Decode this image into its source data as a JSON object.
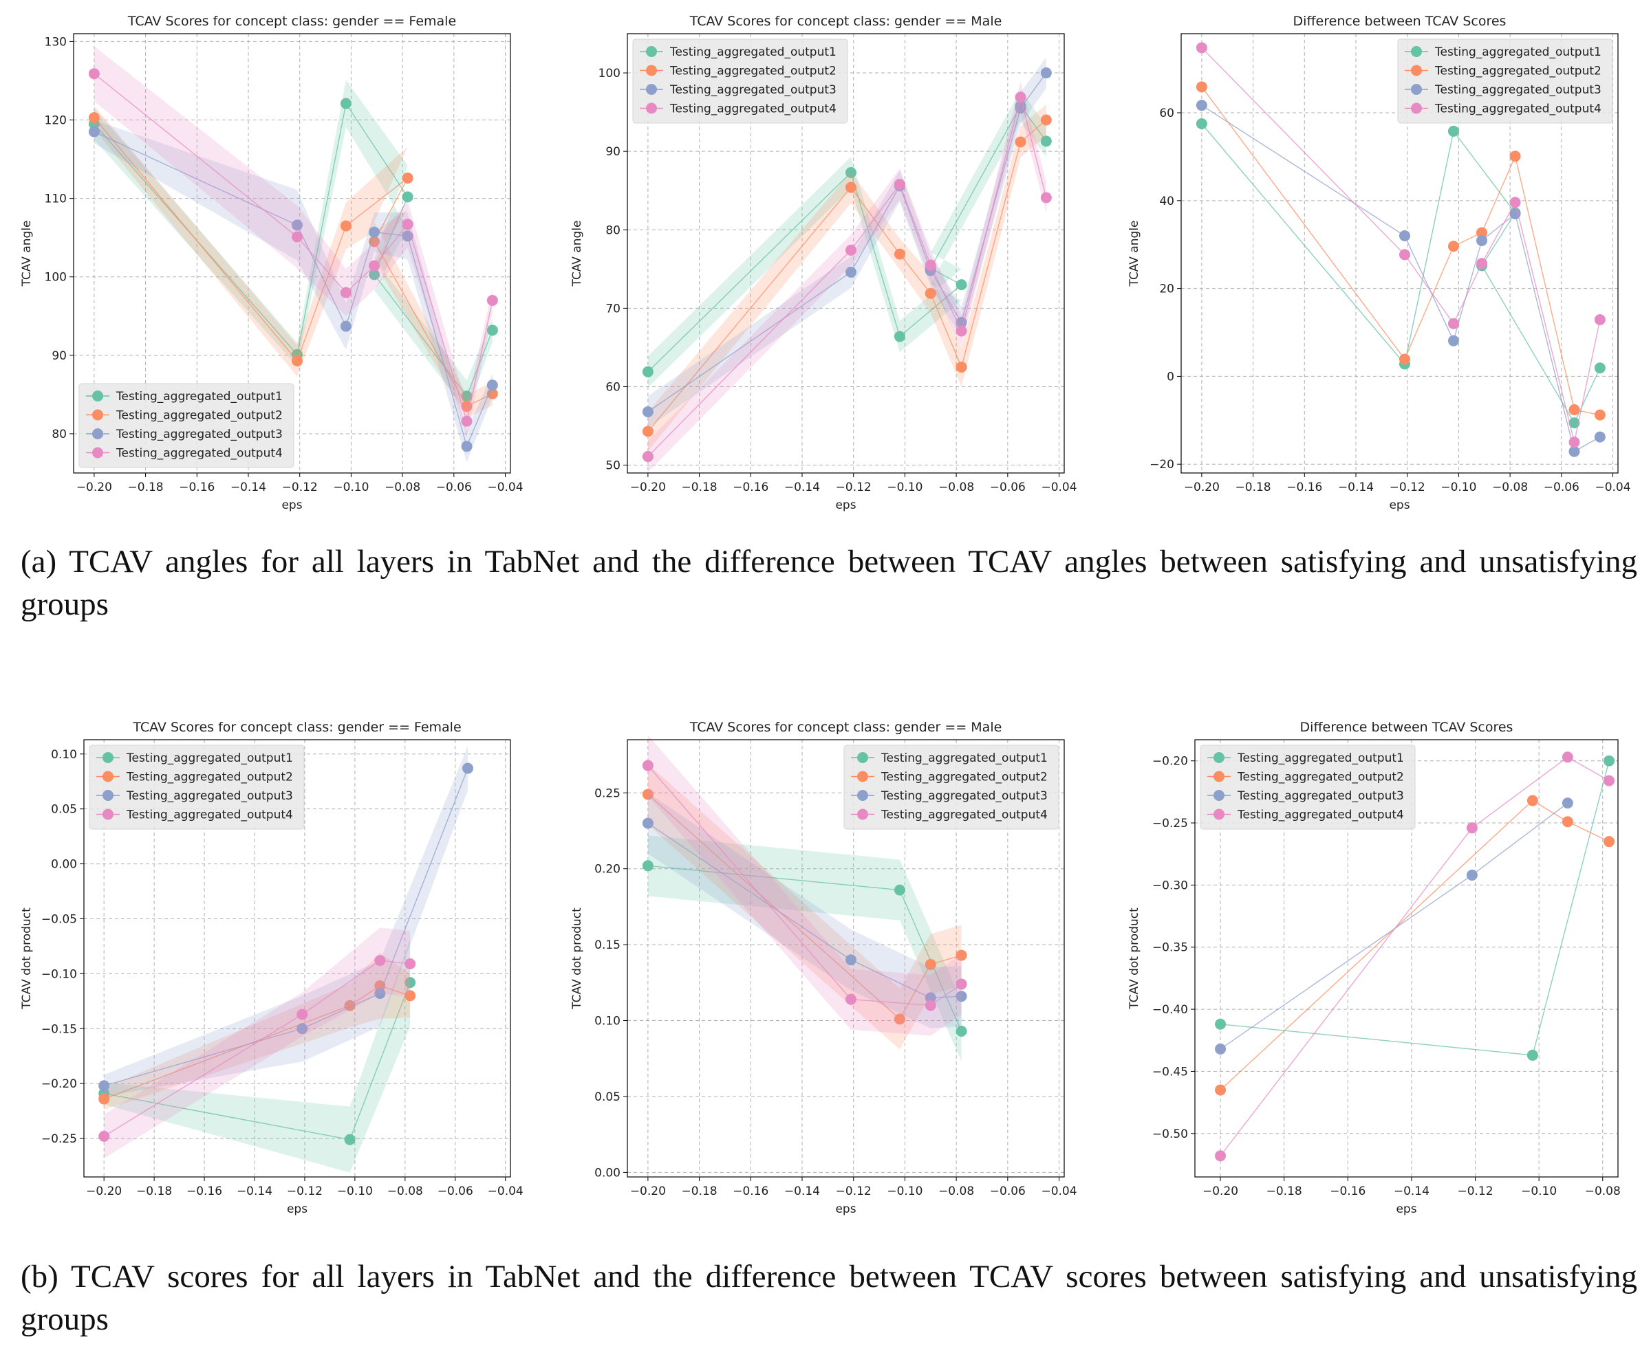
{
  "colors": {
    "series": [
      "#66c2a5",
      "#fc8d62",
      "#8da0cb",
      "#e78ac3"
    ],
    "grid": "#b0b0b0",
    "axis": "#000000",
    "legend_bg": "#e8e8e8"
  },
  "captions": {
    "a": "(a) TCAV angles for all layers in TabNet and the difference between TCAV angles between satisfying and unsatisfying groups",
    "b": "(b) TCAV scores for all layers in TabNet and the difference between TCAV scores between satisfying and unsatisfying groups"
  },
  "chart_data": [
    {
      "type": "line",
      "title": "TCAV Scores for concept class: gender == Female",
      "xlabel": "eps",
      "ylabel": "TCAV angle",
      "xlim": [
        -0.208,
        -0.038
      ],
      "ylim": [
        75,
        131
      ],
      "xticks": [
        -0.2,
        -0.18,
        -0.16,
        -0.14,
        -0.12,
        -0.1,
        -0.08,
        -0.06,
        -0.04
      ],
      "yticks": [
        80,
        90,
        100,
        110,
        120,
        130
      ],
      "grid": true,
      "legend": "lower-left",
      "series": [
        {
          "name": "Testing_aggregated_output1",
          "x": [
            -0.2,
            -0.121,
            -0.102,
            -0.078,
            -0.091,
            -0.055,
            -0.045
          ],
          "y": [
            119.5,
            90.1,
            122.1,
            110.2,
            100.3,
            84.8,
            93.2
          ],
          "band": [
            2.0,
            1.5,
            3.0,
            4.0,
            2.0,
            2.0,
            1.5
          ]
        },
        {
          "name": "Testing_aggregated_output2",
          "x": [
            -0.2,
            -0.121,
            -0.102,
            -0.078,
            -0.091,
            -0.055,
            -0.045
          ],
          "y": [
            120.3,
            89.3,
            106.5,
            112.6,
            104.5,
            83.5,
            85.1
          ],
          "band": [
            1.5,
            2.0,
            3.0,
            4.0,
            2.5,
            1.5,
            1.5
          ]
        },
        {
          "name": "Testing_aggregated_output3",
          "x": [
            -0.2,
            -0.121,
            -0.102,
            -0.091,
            -0.078,
            -0.055,
            -0.045
          ],
          "y": [
            118.5,
            106.6,
            93.7,
            105.7,
            105.2,
            78.4,
            86.2
          ],
          "band": [
            1.5,
            4.5,
            3.0,
            2.5,
            3.0,
            2.0,
            1.5
          ]
        },
        {
          "name": "Testing_aggregated_output4",
          "x": [
            -0.2,
            -0.121,
            -0.102,
            -0.091,
            -0.078,
            -0.055,
            -0.045
          ],
          "y": [
            125.9,
            105.1,
            98.0,
            101.4,
            106.7,
            81.6,
            97.0
          ],
          "band": [
            3.5,
            4.0,
            3.0,
            3.0,
            3.0,
            2.0,
            1.5
          ]
        }
      ]
    },
    {
      "type": "line",
      "title": "TCAV Scores for concept class: gender == Male",
      "xlabel": "eps",
      "ylabel": "TCAV angle",
      "xlim": [
        -0.208,
        -0.038
      ],
      "ylim": [
        49,
        105
      ],
      "xticks": [
        -0.2,
        -0.18,
        -0.16,
        -0.14,
        -0.12,
        -0.1,
        -0.08,
        -0.06,
        -0.04
      ],
      "yticks": [
        50,
        60,
        70,
        80,
        90,
        100
      ],
      "grid": true,
      "legend": "upper-left",
      "series": [
        {
          "name": "Testing_aggregated_output1",
          "x": [
            -0.2,
            -0.121,
            -0.102,
            -0.078,
            -0.09,
            -0.055,
            -0.045
          ],
          "y": [
            61.9,
            87.3,
            66.4,
            73.0,
            75.1,
            95.8,
            91.3
          ],
          "band": [
            2.0,
            2.0,
            2.0,
            2.0,
            2.0,
            2.0,
            2.0
          ]
        },
        {
          "name": "Testing_aggregated_output2",
          "x": [
            -0.2,
            -0.121,
            -0.102,
            -0.09,
            -0.078,
            -0.055,
            -0.045
          ],
          "y": [
            54.3,
            85.4,
            76.9,
            71.9,
            62.5,
            91.2,
            94.0
          ],
          "band": [
            2.5,
            2.0,
            2.0,
            2.5,
            2.5,
            2.0,
            2.0
          ]
        },
        {
          "name": "Testing_aggregated_output3",
          "x": [
            -0.2,
            -0.121,
            -0.102,
            -0.09,
            -0.078,
            -0.055,
            -0.045
          ],
          "y": [
            56.8,
            74.6,
            85.6,
            74.8,
            68.2,
            95.5,
            100.0
          ],
          "band": [
            2.0,
            2.0,
            2.0,
            2.0,
            2.0,
            2.0,
            2.0
          ]
        },
        {
          "name": "Testing_aggregated_output4",
          "x": [
            -0.2,
            -0.121,
            -0.102,
            -0.09,
            -0.078,
            -0.055,
            -0.045
          ],
          "y": [
            51.1,
            77.4,
            85.8,
            75.5,
            67.1,
            96.9,
            84.1
          ],
          "band": [
            2.0,
            2.0,
            2.0,
            2.0,
            2.0,
            2.0,
            2.0
          ]
        }
      ]
    },
    {
      "type": "line",
      "title": "Difference between TCAV Scores",
      "xlabel": "eps",
      "ylabel": "TCAV angle",
      "xlim": [
        -0.208,
        -0.038
      ],
      "ylim": [
        -22,
        78
      ],
      "xticks": [
        -0.2,
        -0.18,
        -0.16,
        -0.14,
        -0.12,
        -0.1,
        -0.08,
        -0.06,
        -0.04
      ],
      "yticks": [
        -20,
        0,
        20,
        40,
        60
      ],
      "grid": true,
      "legend": "upper-right",
      "series": [
        {
          "name": "Testing_aggregated_output1",
          "x": [
            -0.2,
            -0.121,
            -0.102,
            -0.078,
            -0.091,
            -0.055,
            -0.045
          ],
          "y": [
            57.5,
            2.8,
            55.8,
            37.2,
            25.2,
            -10.6,
            1.9
          ]
        },
        {
          "name": "Testing_aggregated_output2",
          "x": [
            -0.2,
            -0.121,
            -0.102,
            -0.091,
            -0.078,
            -0.055,
            -0.045
          ],
          "y": [
            65.9,
            3.9,
            29.6,
            32.7,
            50.1,
            -7.6,
            -8.8
          ]
        },
        {
          "name": "Testing_aggregated_output3",
          "x": [
            -0.2,
            -0.121,
            -0.102,
            -0.091,
            -0.078,
            -0.055,
            -0.045
          ],
          "y": [
            61.7,
            32.0,
            8.1,
            30.9,
            37.0,
            -17.1,
            -13.8
          ]
        },
        {
          "name": "Testing_aggregated_output4",
          "x": [
            -0.2,
            -0.121,
            -0.102,
            -0.091,
            -0.078,
            -0.055,
            -0.045
          ],
          "y": [
            74.8,
            27.7,
            12.0,
            25.7,
            39.6,
            -15.0,
            12.9
          ]
        }
      ]
    },
    {
      "type": "line",
      "title": "TCAV Scores for concept class: gender == Female",
      "xlabel": "eps",
      "ylabel": "TCAV dot product",
      "xlim": [
        -0.208,
        -0.038
      ],
      "ylim": [
        -0.285,
        0.113
      ],
      "xticks": [
        -0.2,
        -0.18,
        -0.16,
        -0.14,
        -0.12,
        -0.1,
        -0.08,
        -0.06,
        -0.04
      ],
      "yticks": [
        -0.25,
        -0.2,
        -0.15,
        -0.1,
        -0.05,
        0.0,
        0.05,
        0.1
      ],
      "grid": true,
      "legend": "upper-left",
      "series": [
        {
          "name": "Testing_aggregated_output1",
          "x": [
            -0.2,
            -0.102,
            -0.078
          ],
          "y": [
            -0.209,
            -0.251,
            -0.108
          ],
          "band": [
            0.01,
            0.03,
            0.04
          ]
        },
        {
          "name": "Testing_aggregated_output2",
          "x": [
            -0.2,
            -0.102,
            -0.09,
            -0.078
          ],
          "y": [
            -0.214,
            -0.129,
            -0.111,
            -0.12
          ],
          "band": [
            0.01,
            0.02,
            0.03,
            0.02
          ]
        },
        {
          "name": "Testing_aggregated_output3",
          "x": [
            -0.2,
            -0.121,
            -0.09,
            -0.055
          ],
          "y": [
            -0.202,
            -0.15,
            -0.118,
            0.087
          ],
          "band": [
            0.01,
            0.03,
            0.03,
            0.02
          ]
        },
        {
          "name": "Testing_aggregated_output4",
          "x": [
            -0.2,
            -0.121,
            -0.09,
            -0.078
          ],
          "y": [
            -0.248,
            -0.137,
            -0.088,
            -0.091
          ],
          "band": [
            0.02,
            0.02,
            0.03,
            0.03
          ]
        }
      ]
    },
    {
      "type": "line",
      "title": "TCAV Scores for concept class: gender == Male",
      "xlabel": "eps",
      "ylabel": "TCAV dot product",
      "xlim": [
        -0.208,
        -0.038
      ],
      "ylim": [
        -0.003,
        0.285
      ],
      "xticks": [
        -0.2,
        -0.18,
        -0.16,
        -0.14,
        -0.12,
        -0.1,
        -0.08,
        -0.06,
        -0.04
      ],
      "yticks": [
        0.0,
        0.05,
        0.1,
        0.15,
        0.2,
        0.25
      ],
      "grid": true,
      "legend": "upper-right",
      "series": [
        {
          "name": "Testing_aggregated_output1",
          "x": [
            -0.2,
            -0.102,
            -0.078
          ],
          "y": [
            0.202,
            0.186,
            0.093
          ],
          "band": [
            0.02,
            0.02,
            0.02
          ]
        },
        {
          "name": "Testing_aggregated_output2",
          "x": [
            -0.2,
            -0.102,
            -0.09,
            -0.078
          ],
          "y": [
            0.249,
            0.101,
            0.137,
            0.143
          ],
          "band": [
            0.02,
            0.02,
            0.02,
            0.02
          ]
        },
        {
          "name": "Testing_aggregated_output3",
          "x": [
            -0.2,
            -0.121,
            -0.09,
            -0.078
          ],
          "y": [
            0.23,
            0.14,
            0.115,
            0.116
          ],
          "band": [
            0.02,
            0.02,
            0.02,
            0.02
          ]
        },
        {
          "name": "Testing_aggregated_output4",
          "x": [
            -0.2,
            -0.121,
            -0.09,
            -0.078
          ],
          "y": [
            0.268,
            0.114,
            0.11,
            0.124
          ],
          "band": [
            0.02,
            0.02,
            0.02,
            0.02
          ]
        }
      ]
    },
    {
      "type": "line",
      "title": "Difference between TCAV Scores",
      "xlabel": "eps",
      "ylabel": "TCAV dot product",
      "xlim": [
        -0.208,
        -0.0752
      ],
      "ylim": [
        -0.535,
        -0.183
      ],
      "xticks": [
        -0.2,
        -0.18,
        -0.16,
        -0.14,
        -0.12,
        -0.1,
        -0.08
      ],
      "yticks": [
        -0.5,
        -0.45,
        -0.4,
        -0.35,
        -0.3,
        -0.25,
        -0.2
      ],
      "grid": true,
      "legend": "upper-left",
      "series": [
        {
          "name": "Testing_aggregated_output1",
          "x": [
            -0.2,
            -0.102,
            -0.078
          ],
          "y": [
            -0.412,
            -0.437,
            -0.2
          ]
        },
        {
          "name": "Testing_aggregated_output2",
          "x": [
            -0.2,
            -0.102,
            -0.091,
            -0.078
          ],
          "y": [
            -0.465,
            -0.232,
            -0.249,
            -0.265
          ]
        },
        {
          "name": "Testing_aggregated_output3",
          "x": [
            -0.2,
            -0.121,
            -0.091
          ],
          "y": [
            -0.432,
            -0.292,
            -0.234
          ]
        },
        {
          "name": "Testing_aggregated_output4",
          "x": [
            -0.2,
            -0.121,
            -0.091,
            -0.078
          ],
          "y": [
            -0.518,
            -0.254,
            -0.197,
            -0.216
          ]
        }
      ]
    }
  ]
}
